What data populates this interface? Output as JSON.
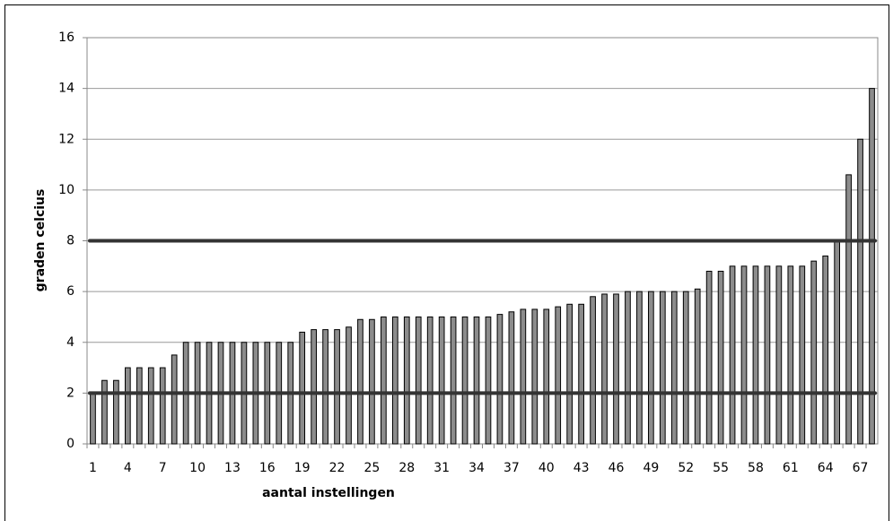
{
  "chart_data": {
    "type": "bar",
    "xlabel": "aantal instellingen",
    "ylabel": "graden celcius",
    "categories": [
      1,
      null,
      null,
      4,
      null,
      null,
      7,
      null,
      null,
      10,
      null,
      null,
      13,
      null,
      null,
      16,
      null,
      null,
      19,
      null,
      null,
      22,
      null,
      null,
      25,
      null,
      null,
      28,
      null,
      null,
      31,
      null,
      null,
      34,
      null,
      null,
      37,
      null,
      null,
      40,
      null,
      null,
      43,
      null,
      null,
      46,
      null,
      null,
      49,
      null,
      null,
      52,
      null,
      null,
      55,
      null,
      null,
      58,
      null,
      null,
      61,
      null,
      null,
      64,
      null,
      null,
      67,
      null
    ],
    "values": [
      2,
      2.5,
      2.5,
      3,
      3,
      3,
      3,
      3.5,
      4,
      4,
      4,
      4,
      4,
      4,
      4,
      4,
      4,
      4,
      4.4,
      4.5,
      4.5,
      4.5,
      4.6,
      4.9,
      4.9,
      5,
      5,
      5,
      5,
      5,
      5,
      5,
      5,
      5,
      5,
      5.1,
      5.2,
      5.3,
      5.3,
      5.3,
      5.4,
      5.5,
      5.5,
      5.8,
      5.9,
      5.9,
      6,
      6,
      6,
      6,
      6,
      6,
      6.1,
      6.8,
      6.8,
      7,
      7,
      7,
      7,
      7,
      7,
      7,
      7.2,
      7.4,
      8,
      10.6,
      12,
      14
    ],
    "color": "#8c8c8c",
    "reference_lines": [
      2,
      8
    ],
    "reference_color": "#333333",
    "ylim": [
      0,
      16
    ],
    "yticks": [
      0,
      2,
      4,
      6,
      8,
      10,
      12,
      14,
      16
    ],
    "grid": true
  }
}
